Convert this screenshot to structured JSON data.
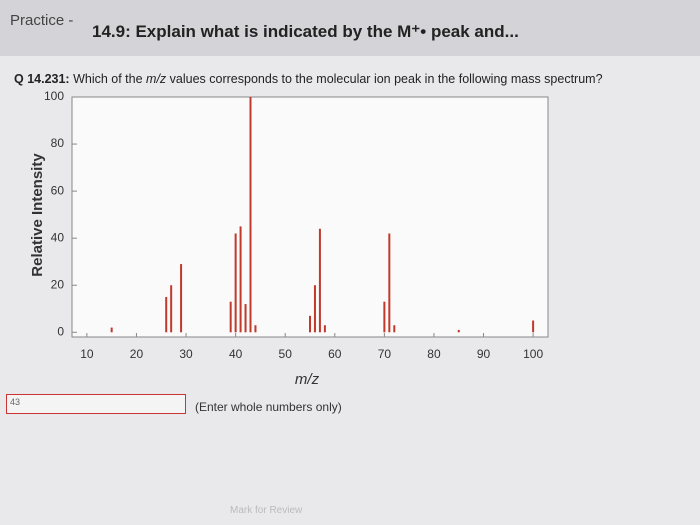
{
  "header": {
    "prefix": "Practice -",
    "title": "14.9: Explain what is indicated by the M⁺• peak and..."
  },
  "question": {
    "number": "Q 14.231:",
    "text_before": "Which of the",
    "italic": "m/z",
    "text_after": "values corresponds to the molecular ion peak in the following mass spectrum?"
  },
  "chart_data": {
    "type": "bar",
    "xlabel": "m/z",
    "ylabel": "Relative Intensity",
    "x": [
      15,
      26,
      27,
      29,
      39,
      40,
      41,
      42,
      43,
      44,
      55,
      56,
      57,
      58,
      70,
      71,
      72,
      85,
      100
    ],
    "values": [
      2,
      15,
      20,
      29,
      13,
      42,
      45,
      12,
      100,
      3,
      7,
      20,
      44,
      3,
      13,
      42,
      3,
      1,
      5
    ],
    "color": "#c0392b",
    "xlim": [
      7,
      103
    ],
    "xticks": [
      10,
      20,
      30,
      40,
      50,
      60,
      70,
      80,
      90,
      100
    ],
    "ylim": [
      -2,
      100
    ],
    "yticks": [
      0,
      20,
      40,
      60,
      80,
      100
    ]
  },
  "answer": {
    "value": "43",
    "hint": "(Enter whole numbers only)"
  },
  "footer": {
    "mark": "Mark for Review"
  }
}
